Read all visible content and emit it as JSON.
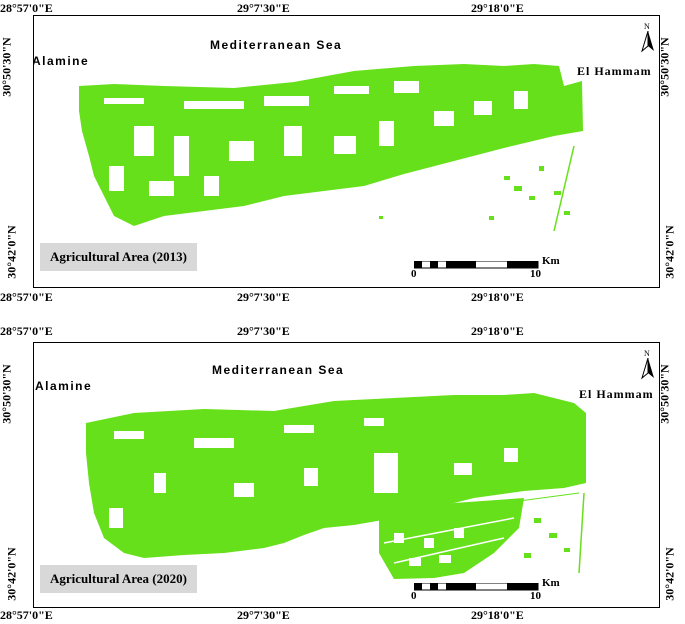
{
  "panels": [
    {
      "title": "Agricultural Area (2013)",
      "sea": "Mediterranean Sea",
      "west_town": "Alamine",
      "east_town": "El Hammam",
      "north": "N",
      "lon_labels": [
        "28°57'0\"E",
        "29°7'30\"E",
        "29°18'0\"E"
      ],
      "lat_labels": [
        "30°50'30\"N",
        "30°42'0\"N"
      ],
      "scale_unit": "Km",
      "scale_ticks": [
        "0",
        "10"
      ]
    },
    {
      "title": "Agricultural Area (2020)",
      "sea": "Mediterranean Sea",
      "west_town": "Alamine",
      "east_town": "El Hammam",
      "north": "N",
      "lon_labels": [
        "28°57'0\"E",
        "29°7'30\"E",
        "29°18'0\"E"
      ],
      "lat_labels": [
        "30°50'30\"N",
        "30°42'0\"N"
      ],
      "scale_unit": "Km",
      "scale_ticks": [
        "0",
        "10"
      ]
    }
  ],
  "colors": {
    "agriculture": "#66e01a",
    "frame": "#000000",
    "title_bg": "#d8d8d8"
  }
}
